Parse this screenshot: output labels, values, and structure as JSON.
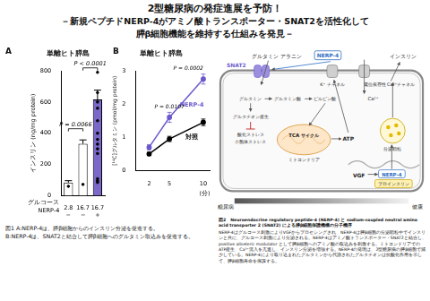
{
  "title_lines": [
    "2型糖尿病の発症進展を予防！",
    "－新規ペプチドNERP-4がアミノ酸トランスポーター・SNAT2を活性化して",
    "膵β細胞機能を維持する仕組みを発見－"
  ],
  "chart_data": [
    {
      "panel": "A",
      "type": "bar",
      "title": "単離ヒト膵島",
      "y_label": "インスリン (ng/mg protein)",
      "categories": [
        "2.8",
        "16.7",
        "16.7"
      ],
      "row_labels": [
        "グルコース",
        "NERP-4"
      ],
      "nerp4": [
        "−",
        "−",
        "+"
      ],
      "values": [
        84,
        332,
        616
      ],
      "errors": [
        12,
        25,
        60
      ],
      "points": [
        [
          60,
          72,
          85,
          95,
          108
        ],
        [
          270,
          300,
          330,
          360,
          400
        ],
        [
          480,
          560,
          600,
          660,
          790
        ]
      ],
      "colors": [
        "#ffffff",
        "#ffffff",
        "#7b68c8"
      ],
      "ylim": [
        0,
        800
      ],
      "yticks": [
        0,
        200,
        400,
        600,
        800
      ],
      "grid": false,
      "annotations": [
        {
          "text": "P = 0.0066",
          "between": [
            0,
            1
          ]
        },
        {
          "text": "P < 0.0001",
          "between": [
            1,
            2
          ]
        }
      ]
    },
    {
      "panel": "B",
      "type": "line",
      "title": "単離ヒト膵島",
      "y_label": "[¹⁴C]グルタミン (pmol/mg protein)",
      "x_label": "(分)",
      "x": [
        2,
        5,
        10
      ],
      "xlim": [
        0,
        11
      ],
      "xticks": [
        2,
        5,
        10
      ],
      "ylim": [
        0,
        3
      ],
      "yticks": [
        0,
        1,
        2,
        3
      ],
      "grid": false,
      "series": [
        {
          "name": "NERP-4",
          "color": "#6a5acd",
          "marker": "circle",
          "values": [
            0.7,
            1.6,
            2.75
          ],
          "errors": [
            0.08,
            0.15,
            0.15
          ]
        },
        {
          "name": "対照",
          "color": "#000000",
          "marker": "circle",
          "values": [
            0.5,
            0.95,
            1.45
          ],
          "errors": [
            0.05,
            0.08,
            0.1
          ]
        }
      ],
      "annotations": [
        {
          "text": "P = 0.0107",
          "x": 5
        },
        {
          "text": "P = 0.0002",
          "x": 10
        }
      ]
    }
  ],
  "captions": {
    "fig1": [
      "図1 A:NERP-4は、膵β細胞からのインスリン分泌を促進する。",
      "B:NERP-4は、SNAT2と結合して膵β細胞へのグルタミン取込みを促進する。"
    ],
    "fig2_title": "図2　Neuroendocrine regulatory peptide-4 (NERP-4) と sodium-coupled neutral amino acid transporter 2 (SNAT2) による膵β細胞保護機構の分子機序",
    "fig2_body": "NERP-4はグルコース刺激によりVGFからプロセシングされ、NERP-4は膵β細胞の分泌顆粒中でインスリンと共に、グルコース刺激により分泌される。NERP-4はアミノ酸トランスポーター・SNAT2と結合し、positive allosteric modulator として膵β細胞へのアミノ酸の取込みを刺激する。ミトコンドリアでのATP産生、Ca²⁺流入を亢進し、インスリン分泌を増強する。NERP-4の発現は、2型糖尿病の膵β細胞で減少している。NERP-4により取り込まれたグルタミンから代謝されたグルタチオンは抗酸化作用を示して、膵β細胞寿命を保護する。"
  },
  "diagram": {
    "amino_acids": "グルタミン アラニン",
    "nerp4_out": "NERP-4",
    "insulin_out": "インスリン",
    "snat2": "SNAT2",
    "k_channel": "K⁺ チャネル",
    "ca_channel": "電位依存性 Ca²⁺チャネル",
    "ca": "Ca²⁺",
    "glutamine_in": "グルタミン",
    "glutamate": "グルタミン酸",
    "pyruvate": "ピルビン酸",
    "glutathione": "グルタチオン産生",
    "stress": [
      "酸化ストレス",
      "小胞体ストレス"
    ],
    "tca": "TCA サイクル",
    "mitochondria": "ミトコンドリア",
    "atp": "ATP",
    "granule": "分泌顆粒",
    "vgf": "VGF",
    "nerp4_in": "NERP-4",
    "proinsulin": "プロインスリン",
    "diabetes": "糖尿病",
    "healthy": "健康"
  }
}
